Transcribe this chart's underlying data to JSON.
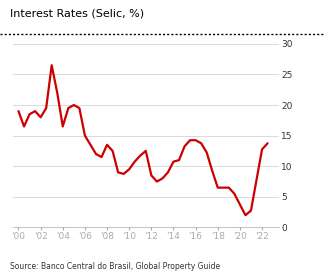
{
  "title": "Interest Rates (Selic, %)",
  "source": "Source: Banco Central do Brasil, Global Property Guide",
  "line_color": "#cc0000",
  "background_color": "#ffffff",
  "ylim": [
    0,
    30
  ],
  "yticks": [
    0,
    5,
    10,
    15,
    20,
    25,
    30
  ],
  "xtick_labels": [
    "'00",
    "'02",
    "'04",
    "'06",
    "'08",
    "'10",
    "'12",
    "'14",
    "'16",
    "'18",
    "'20",
    "'22"
  ],
  "xtick_positions": [
    2000,
    2002,
    2004,
    2006,
    2008,
    2010,
    2012,
    2014,
    2016,
    2018,
    2020,
    2022
  ],
  "data": [
    [
      2000.0,
      19.0
    ],
    [
      2000.5,
      16.5
    ],
    [
      2001.0,
      18.5
    ],
    [
      2001.5,
      19.0
    ],
    [
      2002.0,
      18.0
    ],
    [
      2002.5,
      19.5
    ],
    [
      2003.0,
      26.5
    ],
    [
      2003.5,
      22.0
    ],
    [
      2004.0,
      16.5
    ],
    [
      2004.5,
      19.5
    ],
    [
      2005.0,
      20.0
    ],
    [
      2005.5,
      19.5
    ],
    [
      2006.0,
      15.0
    ],
    [
      2006.5,
      13.5
    ],
    [
      2007.0,
      12.0
    ],
    [
      2007.5,
      11.5
    ],
    [
      2008.0,
      13.5
    ],
    [
      2008.5,
      12.5
    ],
    [
      2009.0,
      9.0
    ],
    [
      2009.5,
      8.75
    ],
    [
      2010.0,
      9.5
    ],
    [
      2010.5,
      10.75
    ],
    [
      2011.0,
      11.75
    ],
    [
      2011.5,
      12.5
    ],
    [
      2012.0,
      8.5
    ],
    [
      2012.5,
      7.5
    ],
    [
      2013.0,
      8.0
    ],
    [
      2013.5,
      9.0
    ],
    [
      2014.0,
      10.75
    ],
    [
      2014.5,
      11.0
    ],
    [
      2015.0,
      13.25
    ],
    [
      2015.5,
      14.25
    ],
    [
      2016.0,
      14.25
    ],
    [
      2016.5,
      13.75
    ],
    [
      2017.0,
      12.25
    ],
    [
      2017.5,
      9.25
    ],
    [
      2018.0,
      6.5
    ],
    [
      2018.5,
      6.5
    ],
    [
      2019.0,
      6.5
    ],
    [
      2019.5,
      5.5
    ],
    [
      2020.0,
      3.75
    ],
    [
      2020.5,
      2.0
    ],
    [
      2021.0,
      2.75
    ],
    [
      2021.5,
      7.75
    ],
    [
      2022.0,
      12.75
    ],
    [
      2022.5,
      13.75
    ]
  ]
}
